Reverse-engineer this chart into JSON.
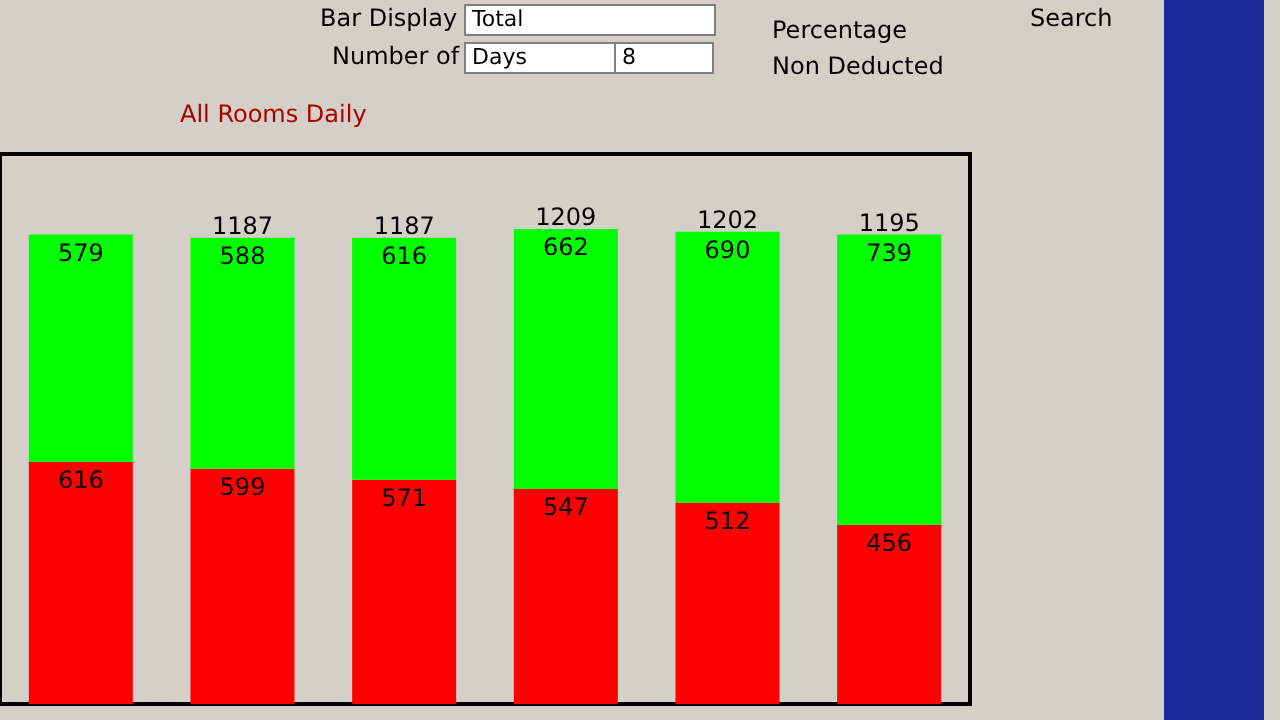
{
  "chart_data": {
    "type": "bar",
    "title": "All Rooms Daily",
    "stacked": true,
    "data_labels": true,
    "categories": [
      null,
      null,
      null,
      null,
      null,
      null
    ],
    "series": [
      {
        "color": "#ff0000",
        "values": [
          616,
          599,
          571,
          547,
          512,
          456
        ]
      },
      {
        "color": "#00ff00",
        "values": [
          579,
          588,
          616,
          662,
          690,
          739
        ]
      }
    ],
    "totals": [
      null,
      "1187",
      "1187",
      "1209",
      "1202",
      "1195"
    ],
    "annotations": [
      "Bar Display",
      "Total",
      "Number of",
      "Days",
      "8",
      "Percentage",
      "Non Deducted",
      "Search"
    ],
    "legend": false
  }
}
